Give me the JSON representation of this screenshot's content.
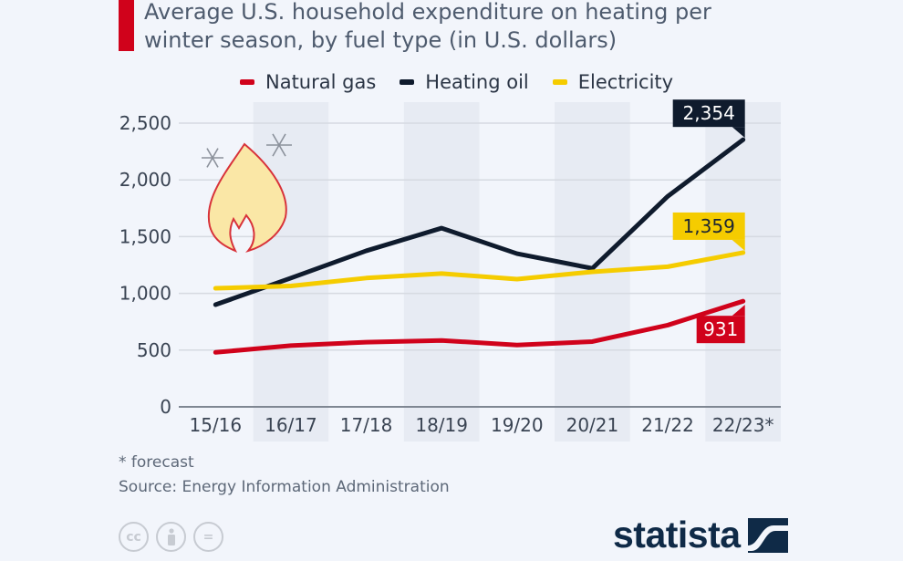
{
  "header": {
    "title": "Average U.S. household expenditure on heating per winter season, by fuel type (in U.S. dollars)",
    "accent_color": "#d0021b"
  },
  "legend": [
    {
      "label": "Natural gas",
      "color": "#d0021b"
    },
    {
      "label": "Heating oil",
      "color": "#0f1b2d"
    },
    {
      "label": "Electricity",
      "color": "#f5cc00"
    }
  ],
  "icons": {
    "illustration": [
      "flame-icon",
      "snowflake-icon",
      "snowflake-icon"
    ],
    "license": [
      "cc-icon",
      "attribution-icon",
      "no-derivatives-icon"
    ],
    "logo": "statista-logo-icon"
  },
  "footer": {
    "note": "* forecast",
    "source": "Source: Energy Information Administration",
    "cc_labels": [
      "cc",
      "",
      "="
    ],
    "logo_text": "statista"
  },
  "chart_data": {
    "type": "line",
    "title": "Average U.S. household expenditure on heating per winter season, by fuel type (in U.S. dollars)",
    "xlabel": "",
    "ylabel": "",
    "categories": [
      "15/16",
      "16/17",
      "17/18",
      "18/19",
      "19/20",
      "20/21",
      "21/22",
      "22/23*"
    ],
    "ylim": [
      0,
      2500
    ],
    "yticks": [
      0,
      500,
      1000,
      1500,
      2000,
      2500
    ],
    "ytick_labels": [
      "0",
      "500",
      "1,000",
      "1,500",
      "2,000",
      "2,500"
    ],
    "grid": true,
    "legend_position": "top",
    "series": [
      {
        "name": "Natural gas",
        "color": "#d0021b",
        "values": [
          480,
          540,
          570,
          585,
          545,
          575,
          720,
          931
        ]
      },
      {
        "name": "Heating oil",
        "color": "#0f1b2d",
        "values": [
          900,
          1135,
          1375,
          1575,
          1350,
          1220,
          1855,
          2354
        ]
      },
      {
        "name": "Electricity",
        "color": "#f5cc00",
        "values": [
          1045,
          1065,
          1135,
          1175,
          1125,
          1190,
          1235,
          1359
        ]
      }
    ],
    "annotations": [
      {
        "series": "Heating oil",
        "category": "22/23*",
        "label": "2,354",
        "color": "#0f1b2d",
        "text_color": "#ffffff",
        "placement": "above"
      },
      {
        "series": "Electricity",
        "category": "22/23*",
        "label": "1,359",
        "color": "#f5cc00",
        "text_color": "#1c2533",
        "placement": "above"
      },
      {
        "series": "Natural gas",
        "category": "22/23*",
        "label": "931",
        "color": "#d0021b",
        "text_color": "#ffffff",
        "placement": "below"
      }
    ],
    "footnote": "* forecast",
    "source": "Energy Information Administration"
  }
}
